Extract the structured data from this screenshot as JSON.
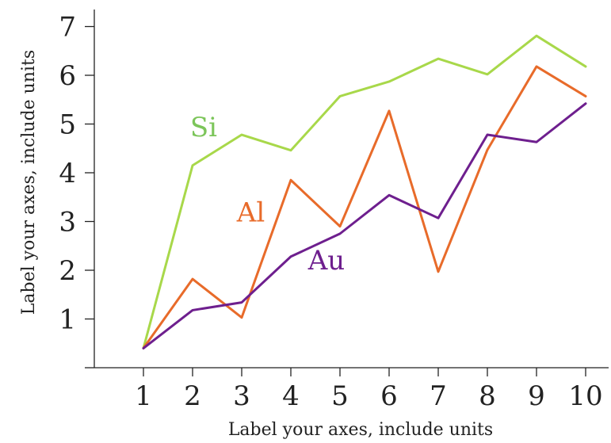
{
  "chart_data": {
    "type": "line",
    "x": [
      1,
      2,
      3,
      4,
      5,
      6,
      7,
      8,
      9,
      10
    ],
    "xlim": [
      0,
      10.5
    ],
    "ylim": [
      0,
      7.4
    ],
    "xticks": [
      1,
      2,
      3,
      4,
      5,
      6,
      7,
      8,
      9,
      10
    ],
    "yticks": [
      1,
      2,
      3,
      4,
      5,
      6,
      7
    ],
    "xlabel": "Label your axes, include units",
    "ylabel": "Label your axes, include units",
    "grid": false,
    "legend": "inline-labels",
    "series": [
      {
        "name": "Si",
        "color": "#a8d84a",
        "label_color": "#7cc55a",
        "label_at": [
          1.95,
          4.75
        ],
        "values": [
          0.4,
          4.15,
          4.78,
          4.46,
          5.57,
          5.87,
          6.34,
          6.02,
          6.81,
          6.18
        ]
      },
      {
        "name": "Al",
        "color": "#e86b2a",
        "label_color": "#e86b2a",
        "label_at": [
          2.9,
          3.0
        ],
        "values": [
          0.4,
          1.82,
          1.03,
          3.85,
          2.9,
          5.27,
          1.97,
          4.47,
          6.18,
          5.57
        ]
      },
      {
        "name": "Au",
        "color": "#6e1f8e",
        "label_color": "#6e1f8e",
        "label_at": [
          4.35,
          2.02
        ],
        "values": [
          0.4,
          1.18,
          1.34,
          2.28,
          2.75,
          3.54,
          3.07,
          4.78,
          4.63,
          5.42
        ]
      }
    ]
  }
}
